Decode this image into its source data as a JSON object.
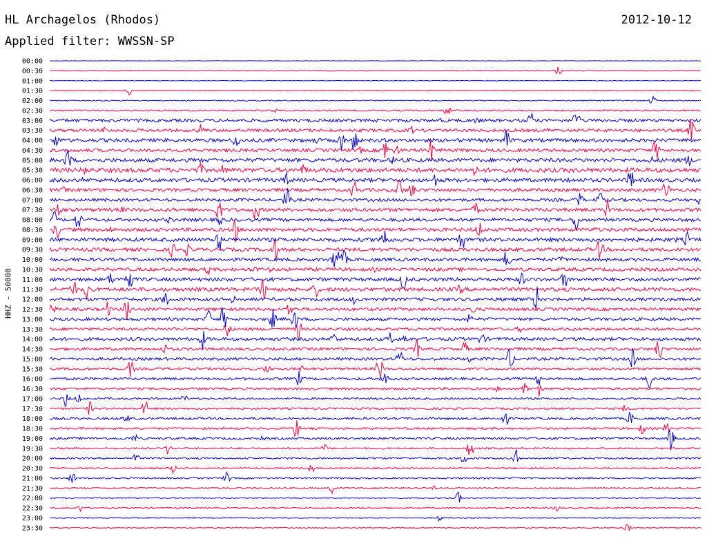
{
  "header": {
    "station": "HL Archagelos (Rhodos)",
    "date": "2012-10-12",
    "filter_text": "Applied filter: WWSSN-SP"
  },
  "chart_data": {
    "type": "line",
    "title": "HL Archagelos (Rhodos)",
    "ylabel": "HHZ - 50000",
    "xlabel": "",
    "trace_colors": [
      "#0000e0",
      "#ff0040"
    ],
    "row_labels": [
      "00:00",
      "00:30",
      "01:00",
      "01:30",
      "02:00",
      "02:30",
      "03:00",
      "03:30",
      "04:00",
      "04:30",
      "05:00",
      "05:30",
      "06:00",
      "06:30",
      "07:00",
      "07:30",
      "08:00",
      "08:30",
      "09:00",
      "09:30",
      "10:00",
      "10:30",
      "11:00",
      "11:30",
      "12:00",
      "12:30",
      "13:00",
      "13:30",
      "14:00",
      "14:30",
      "15:00",
      "15:30",
      "16:00",
      "16:30",
      "17:00",
      "17:30",
      "18:00",
      "18:30",
      "19:00",
      "19:30",
      "20:00",
      "20:30",
      "21:00",
      "21:30",
      "22:00",
      "22:30",
      "23:00",
      "23:30"
    ],
    "noise_level": [
      0.3,
      0.6,
      0.4,
      0.7,
      0.8,
      1.2,
      2.5,
      2.4,
      2.8,
      2.6,
      3.0,
      3.5,
      3.0,
      2.6,
      2.4,
      2.8,
      2.6,
      2.8,
      3.0,
      2.8,
      2.6,
      2.7,
      2.8,
      3.0,
      2.6,
      2.4,
      2.4,
      2.2,
      2.6,
      2.2,
      2.2,
      2.0,
      2.0,
      1.8,
      1.6,
      1.6,
      1.8,
      1.6,
      1.8,
      1.4,
      1.4,
      1.2,
      1.2,
      1.0,
      0.9,
      1.0,
      0.9,
      0.7
    ]
  }
}
